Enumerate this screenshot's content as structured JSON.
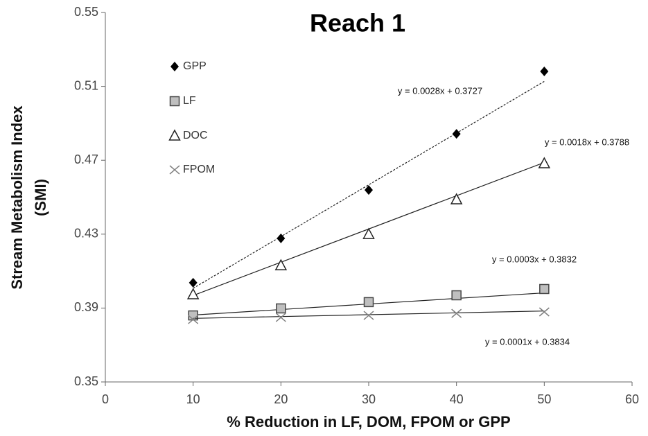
{
  "chart_data": {
    "type": "scatter",
    "title": "Reach 1",
    "xlabel": "% Reduction in LF, DOM, FPOM or GPP",
    "ylabel": [
      "Stream Metabolism Index",
      "(SMI)"
    ],
    "x": [
      10,
      20,
      30,
      40,
      50
    ],
    "xlim": [
      0,
      60
    ],
    "xticks": [
      0,
      10,
      20,
      30,
      40,
      50,
      60
    ],
    "ylim": [
      0.35,
      0.55
    ],
    "yticks": [
      0.35,
      0.39,
      0.43,
      0.47,
      0.51,
      0.55
    ],
    "grid": false,
    "legend": "upper left",
    "series": [
      {
        "name": "GPP",
        "color": "#000000",
        "marker": "diamond",
        "values": [
          0.4037,
          0.4277,
          0.4539,
          0.4843,
          0.5181
        ],
        "trendline": {
          "slope": 0.0028,
          "intercept": 0.3727,
          "label": "y = 0.0028x + 0.3727",
          "style": "dotted"
        }
      },
      {
        "name": "LF",
        "color": "#bfbfbf",
        "marker": "square",
        "values": [
          0.386,
          0.3898,
          0.3932,
          0.3969,
          0.4003
        ],
        "trendline": {
          "slope": 0.0003,
          "intercept": 0.3832,
          "label": "y = 0.0003x + 0.3832",
          "style": "solid"
        }
      },
      {
        "name": "DOC",
        "color": "#ffffff",
        "marker": "triangle",
        "values": [
          0.3973,
          0.413,
          0.4299,
          0.4487,
          0.4682
        ],
        "trendline": {
          "slope": 0.0018,
          "intercept": 0.3788,
          "label": "y = 0.0018x + 0.3788",
          "style": "solid"
        }
      },
      {
        "name": "FPOM",
        "color": "#808080",
        "marker": "cross",
        "values": [
          0.3838,
          0.3849,
          0.386,
          0.3871,
          0.3879
        ],
        "trendline": {
          "slope": 0.0001,
          "intercept": 0.3834,
          "label": "y = 0.0001x + 0.3834",
          "style": "solid"
        }
      }
    ]
  }
}
